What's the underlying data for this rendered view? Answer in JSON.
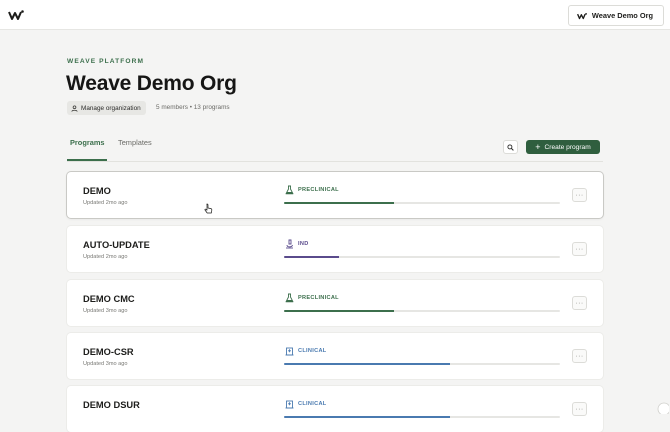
{
  "app": {
    "org_switcher_label": "Weave Demo Org"
  },
  "header": {
    "eyebrow": "WEAVE PLATFORM",
    "title": "Weave Demo Org",
    "manage_label": "Manage organization",
    "meta": "5 members • 13 programs"
  },
  "tabs": [
    {
      "label": "Programs",
      "active": true
    },
    {
      "label": "Templates",
      "active": false
    }
  ],
  "toolbar": {
    "create_label": "Create program",
    "search_icon": "search-icon"
  },
  "colors": {
    "accent": "#2f5e3e",
    "preclinical": "#3c6f4c",
    "ind": "#5a4b8c",
    "clinical": "#4a7ab0"
  },
  "programs": [
    {
      "name": "DEMO",
      "updated": "Updated 2mo ago",
      "phase": "PRECLINICAL",
      "phase_icon": "flask-icon",
      "progress": 0.4
    },
    {
      "name": "AUTO-UPDATE",
      "updated": "Updated 2mo ago",
      "phase": "IND",
      "phase_icon": "microscope-icon",
      "progress": 0.2
    },
    {
      "name": "DEMO CMC",
      "updated": "Updated 3mo ago",
      "phase": "PRECLINICAL",
      "phase_icon": "flask-icon",
      "progress": 0.4
    },
    {
      "name": "DEMO-CSR",
      "updated": "Updated 3mo ago",
      "phase": "CLINICAL",
      "phase_icon": "hospital-icon",
      "progress": 0.6
    },
    {
      "name": "DEMO DSUR",
      "updated": "",
      "phase": "CLINICAL",
      "phase_icon": "hospital-icon",
      "progress": 0.6
    }
  ],
  "more_label": "···"
}
